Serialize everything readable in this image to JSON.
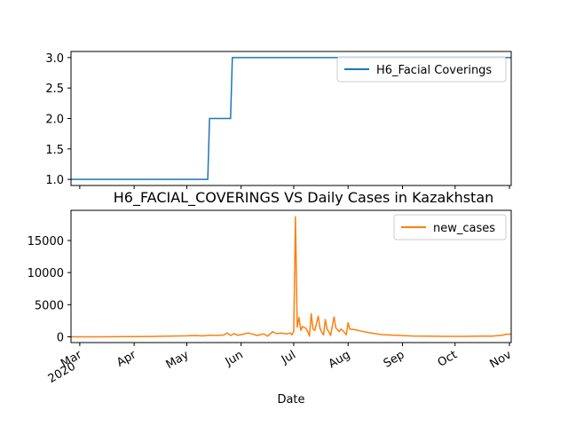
{
  "chart_data": [
    {
      "type": "line",
      "title": "",
      "xlabel": "",
      "ylabel": "",
      "ylim": [
        0.9,
        3.1
      ],
      "yticks": [
        "1.0",
        "1.5",
        "2.0",
        "2.5",
        "3.0"
      ],
      "grid": false,
      "legend_position": "top-right",
      "series": [
        {
          "name": "H6_Facial Coverings",
          "color": "#1f77b4",
          "points": [
            [
              "2020-02-25",
              1
            ],
            [
              "2020-05-13",
              1
            ],
            [
              "2020-05-14",
              2
            ],
            [
              "2020-05-26",
              2
            ],
            [
              "2020-05-27",
              3
            ],
            [
              "2020-11-02",
              3
            ]
          ]
        }
      ]
    },
    {
      "type": "line",
      "title": "H6_FACIAL_COVERINGS VS Daily Cases in Kazakhstan",
      "xlabel": "Date",
      "ylabel": "",
      "ylim": [
        -900,
        19700
      ],
      "yticks": [
        "0",
        "5000",
        "10000",
        "15000"
      ],
      "xticks": [
        {
          "date": "2020-03-01",
          "label": "Mar",
          "sublabel": "2020"
        },
        {
          "date": "2020-04-01",
          "label": "Apr"
        },
        {
          "date": "2020-05-01",
          "label": "May"
        },
        {
          "date": "2020-06-01",
          "label": "Jun"
        },
        {
          "date": "2020-07-01",
          "label": "Jul"
        },
        {
          "date": "2020-08-01",
          "label": "Aug"
        },
        {
          "date": "2020-09-01",
          "label": "Sep"
        },
        {
          "date": "2020-10-01",
          "label": "Oct"
        },
        {
          "date": "2020-11-01",
          "label": "Nov"
        }
      ],
      "grid": false,
      "legend_position": "top-right",
      "series": [
        {
          "name": "new_cases",
          "color": "#ff7f0e",
          "points": [
            [
              "2020-02-25",
              0
            ],
            [
              "2020-03-13",
              0
            ],
            [
              "2020-03-20",
              10
            ],
            [
              "2020-03-27",
              30
            ],
            [
              "2020-04-03",
              40
            ],
            [
              "2020-04-10",
              60
            ],
            [
              "2020-04-17",
              80
            ],
            [
              "2020-04-24",
              120
            ],
            [
              "2020-05-01",
              150
            ],
            [
              "2020-05-06",
              200
            ],
            [
              "2020-05-10",
              140
            ],
            [
              "2020-05-14",
              250
            ],
            [
              "2020-05-18",
              200
            ],
            [
              "2020-05-22",
              280
            ],
            [
              "2020-05-24",
              600
            ],
            [
              "2020-05-26",
              200
            ],
            [
              "2020-05-28",
              500
            ],
            [
              "2020-05-30",
              250
            ],
            [
              "2020-06-02",
              400
            ],
            [
              "2020-06-05",
              600
            ],
            [
              "2020-06-08",
              380
            ],
            [
              "2020-06-10",
              200
            ],
            [
              "2020-06-14",
              450
            ],
            [
              "2020-06-16",
              100
            ],
            [
              "2020-06-19",
              800
            ],
            [
              "2020-06-21",
              500
            ],
            [
              "2020-06-24",
              600
            ],
            [
              "2020-06-27",
              450
            ],
            [
              "2020-06-29",
              600
            ],
            [
              "2020-06-30",
              300
            ],
            [
              "2020-07-01",
              900
            ],
            [
              "2020-07-02",
              18700
            ],
            [
              "2020-07-03",
              1500
            ],
            [
              "2020-07-04",
              3000
            ],
            [
              "2020-07-05",
              1000
            ],
            [
              "2020-07-06",
              1600
            ],
            [
              "2020-07-08",
              1300
            ],
            [
              "2020-07-09",
              800
            ],
            [
              "2020-07-10",
              100
            ],
            [
              "2020-07-11",
              3600
            ],
            [
              "2020-07-12",
              1200
            ],
            [
              "2020-07-13",
              1000
            ],
            [
              "2020-07-15",
              3200
            ],
            [
              "2020-07-16",
              1300
            ],
            [
              "2020-07-17",
              700
            ],
            [
              "2020-07-18",
              300
            ],
            [
              "2020-07-19",
              2700
            ],
            [
              "2020-07-20",
              1200
            ],
            [
              "2020-07-21",
              800
            ],
            [
              "2020-07-22",
              200
            ],
            [
              "2020-07-24",
              3100
            ],
            [
              "2020-07-25",
              1400
            ],
            [
              "2020-07-27",
              800
            ],
            [
              "2020-07-28",
              1200
            ],
            [
              "2020-07-29",
              1000
            ],
            [
              "2020-07-31",
              300
            ],
            [
              "2020-08-01",
              2200
            ],
            [
              "2020-08-02",
              1200
            ],
            [
              "2020-08-05",
              1100
            ],
            [
              "2020-08-10",
              800
            ],
            [
              "2020-08-15",
              550
            ],
            [
              "2020-08-20",
              350
            ],
            [
              "2020-08-25",
              280
            ],
            [
              "2020-08-31",
              200
            ],
            [
              "2020-09-07",
              120
            ],
            [
              "2020-09-15",
              90
            ],
            [
              "2020-09-25",
              70
            ],
            [
              "2020-10-05",
              70
            ],
            [
              "2020-10-15",
              90
            ],
            [
              "2020-10-22",
              110
            ],
            [
              "2020-10-28",
              250
            ],
            [
              "2020-10-30",
              400
            ],
            [
              "2020-11-02",
              420
            ]
          ]
        }
      ]
    }
  ]
}
